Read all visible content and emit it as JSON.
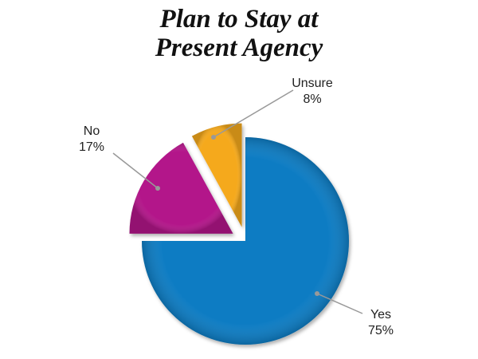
{
  "chart_data": {
    "type": "pie",
    "title": "Plan to Stay at Present Agency",
    "categories": [
      "Yes",
      "No",
      "Unsure"
    ],
    "values": [
      75,
      17,
      8
    ],
    "value_labels": [
      "75%",
      "17%",
      "8%"
    ],
    "colors": [
      "#0a7bc3",
      "#b3198a",
      "#f5a91c"
    ]
  }
}
